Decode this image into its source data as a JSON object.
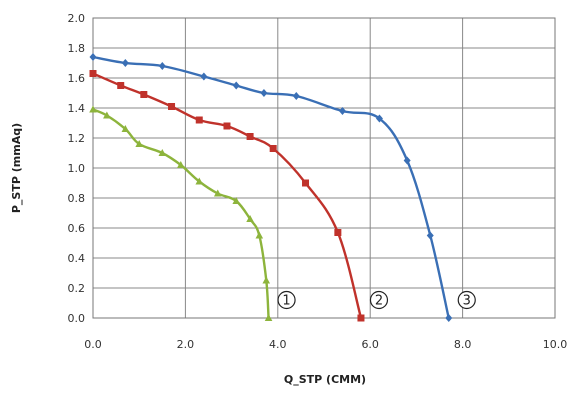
{
  "chart_data": {
    "type": "line",
    "xlabel": "Q_STP (CMM)",
    "ylabel": "P_STP (mmAq)",
    "xlim": [
      0,
      10
    ],
    "ylim": [
      0,
      2.0
    ],
    "x_ticks": [
      "0.0",
      "2.0",
      "4.0",
      "6.0",
      "8.0",
      "10.0"
    ],
    "y_ticks": [
      "0.0",
      "0.2",
      "0.4",
      "0.6",
      "0.8",
      "1.0",
      "1.2",
      "1.4",
      "1.6",
      "1.8",
      "2.0"
    ],
    "grid": true,
    "series": [
      {
        "label": "1",
        "color": "#8db43c",
        "marker": "triangle",
        "points": [
          [
            0.0,
            1.39
          ],
          [
            0.3,
            1.35
          ],
          [
            0.7,
            1.26
          ],
          [
            1.0,
            1.16
          ],
          [
            1.5,
            1.1
          ],
          [
            1.9,
            1.02
          ],
          [
            2.3,
            0.91
          ],
          [
            2.7,
            0.83
          ],
          [
            3.1,
            0.78
          ],
          [
            3.4,
            0.66
          ],
          [
            3.6,
            0.55
          ],
          [
            3.75,
            0.25
          ],
          [
            3.8,
            0.0
          ]
        ]
      },
      {
        "label": "2",
        "color": "#c0322b",
        "marker": "square",
        "points": [
          [
            0.0,
            1.63
          ],
          [
            0.6,
            1.55
          ],
          [
            1.1,
            1.49
          ],
          [
            1.7,
            1.41
          ],
          [
            2.3,
            1.32
          ],
          [
            2.9,
            1.28
          ],
          [
            3.4,
            1.21
          ],
          [
            3.9,
            1.13
          ],
          [
            4.6,
            0.9
          ],
          [
            5.3,
            0.57
          ],
          [
            5.8,
            0.0
          ]
        ]
      },
      {
        "label": "3",
        "color": "#3a6fb5",
        "marker": "diamond",
        "points": [
          [
            0.0,
            1.74
          ],
          [
            0.7,
            1.7
          ],
          [
            1.5,
            1.68
          ],
          [
            2.4,
            1.61
          ],
          [
            3.1,
            1.55
          ],
          [
            3.7,
            1.5
          ],
          [
            4.4,
            1.48
          ],
          [
            5.4,
            1.38
          ],
          [
            6.2,
            1.33
          ],
          [
            6.8,
            1.05
          ],
          [
            7.3,
            0.55
          ],
          [
            7.7,
            0.0
          ]
        ]
      }
    ]
  }
}
